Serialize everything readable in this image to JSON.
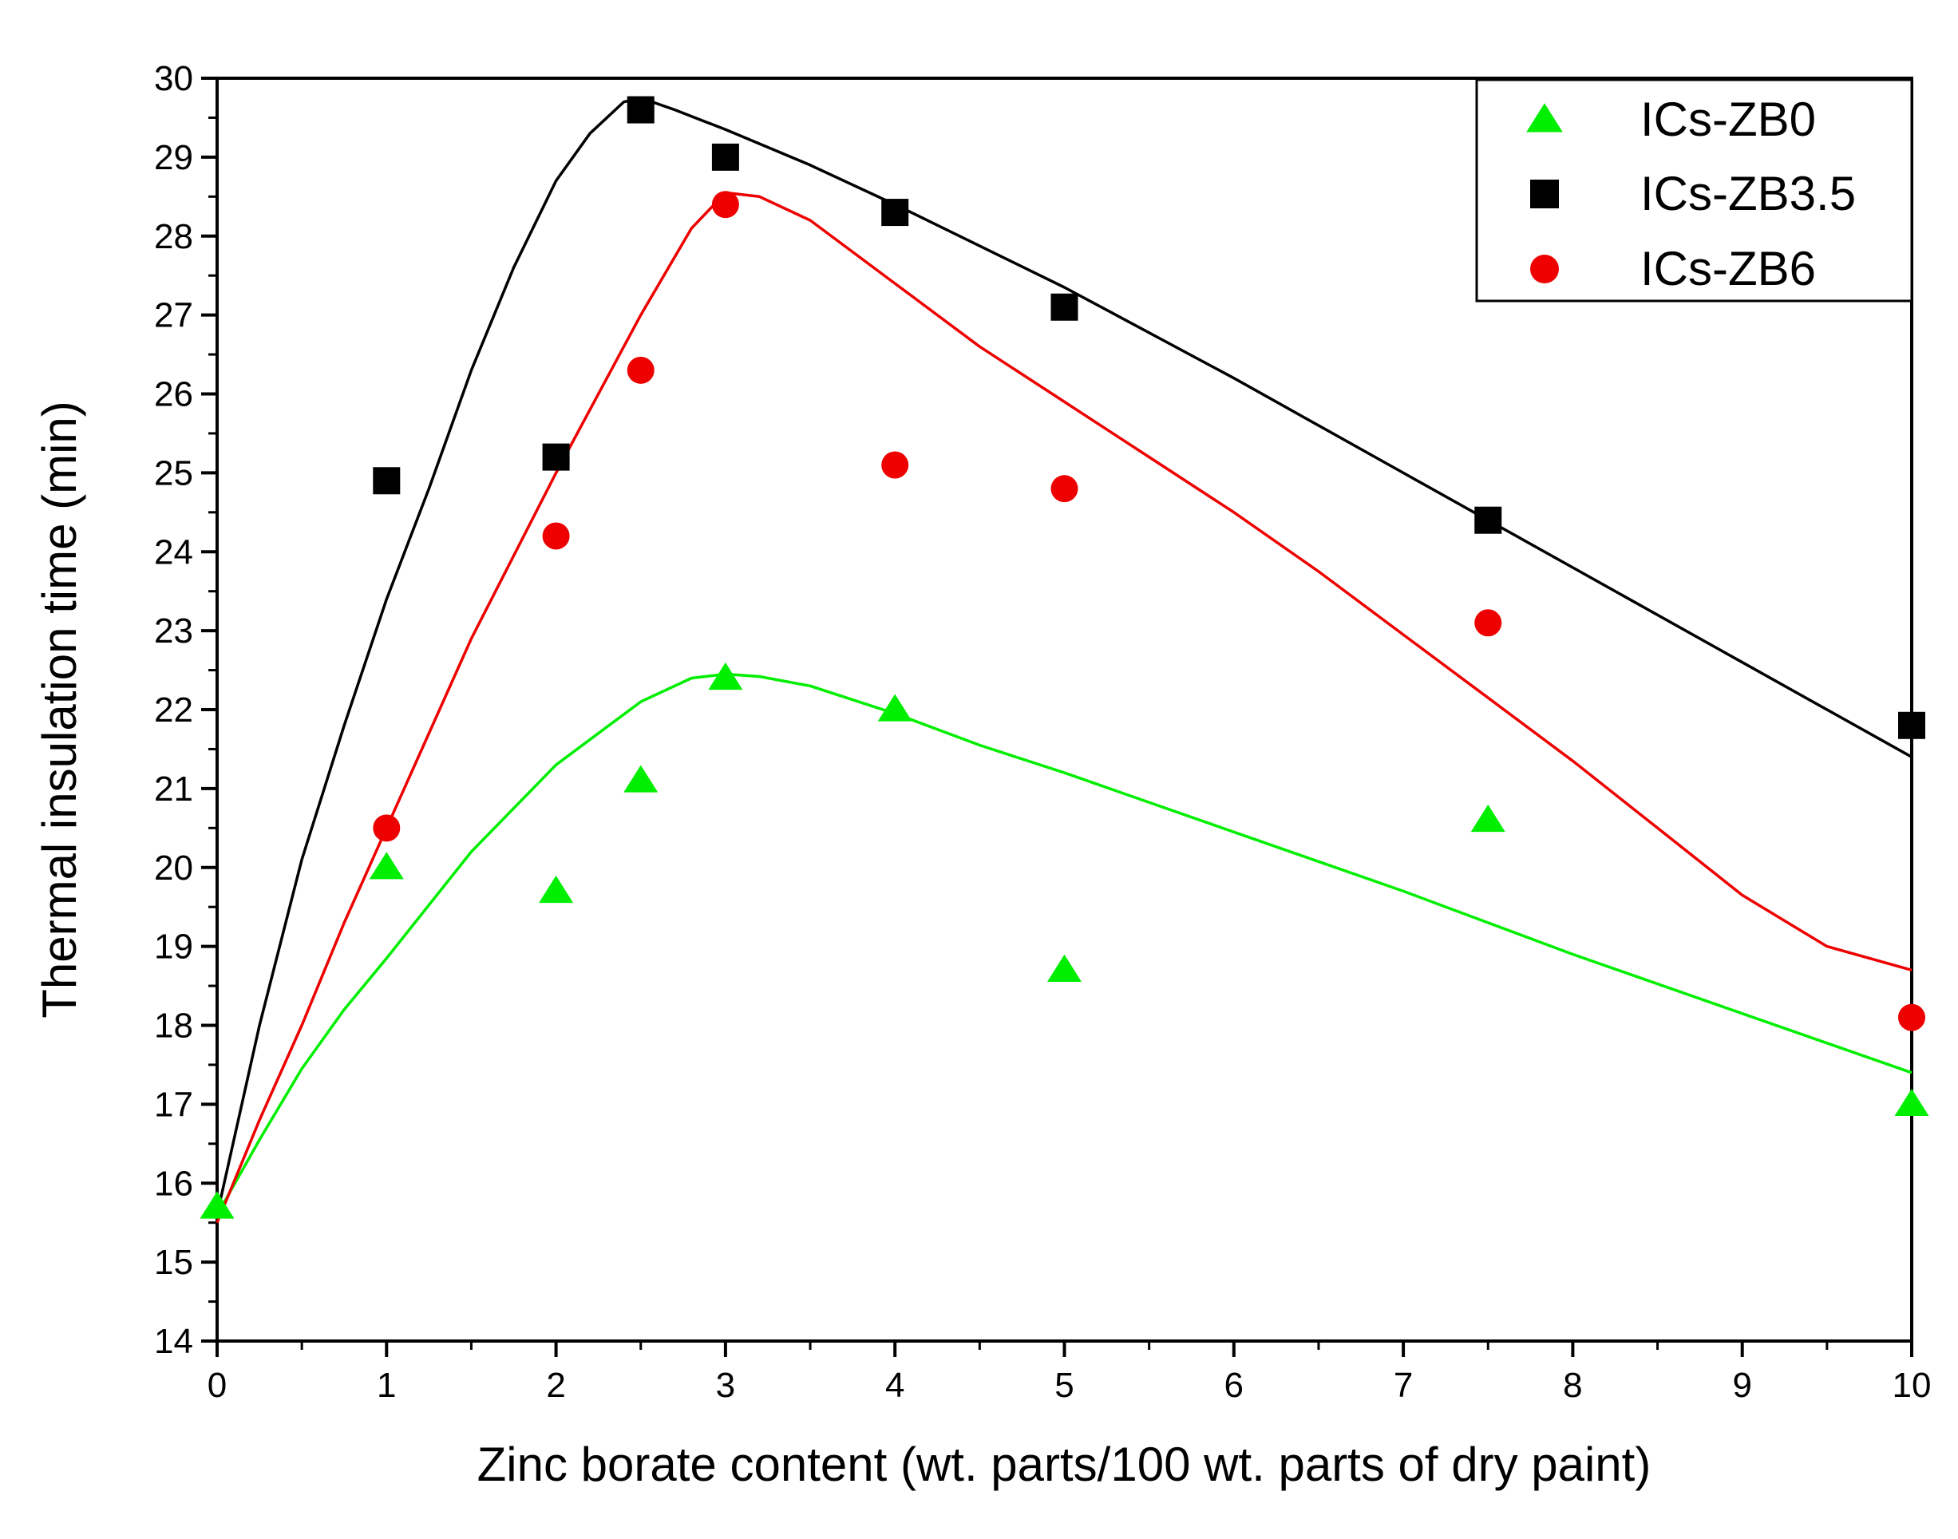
{
  "chart_data": {
    "type": "scatter",
    "title": "",
    "xlabel": "Zinc borate content (wt. parts/100 wt. parts of dry paint)",
    "ylabel": "Thermal insulation time (min)",
    "xlim": [
      0,
      10
    ],
    "ylim": [
      14,
      30
    ],
    "x_ticks": [
      "0",
      "1",
      "2",
      "3",
      "4",
      "5",
      "6",
      "7",
      "8",
      "9",
      "10"
    ],
    "y_ticks": [
      "14",
      "15",
      "16",
      "17",
      "18",
      "19",
      "20",
      "21",
      "22",
      "23",
      "24",
      "25",
      "26",
      "27",
      "28",
      "29",
      "30"
    ],
    "grid": false,
    "legend_position": "top-right",
    "series": [
      {
        "name": "ICs-ZB0",
        "marker": "triangle",
        "color": "#00ee00",
        "x": [
          0,
          1,
          2,
          2.5,
          3,
          4,
          5,
          7.5,
          10
        ],
        "y": [
          15.7,
          20.0,
          19.7,
          21.1,
          22.4,
          22.0,
          18.7,
          20.6,
          17.0
        ],
        "fit_x": [
          0,
          0.25,
          0.5,
          0.75,
          1,
          1.5,
          2,
          2.5,
          2.8,
          3,
          3.2,
          3.5,
          4,
          4.5,
          5,
          6,
          7,
          8,
          9,
          10
        ],
        "fit_y": [
          15.6,
          16.55,
          17.45,
          18.2,
          18.85,
          20.2,
          21.3,
          22.1,
          22.4,
          22.45,
          22.42,
          22.3,
          21.95,
          21.55,
          21.2,
          20.45,
          19.7,
          18.9,
          18.15,
          17.4
        ]
      },
      {
        "name": "ICs-ZB3.5",
        "marker": "square",
        "color": "#000000",
        "x": [
          1,
          2,
          2.5,
          3,
          4,
          5,
          7.5,
          10
        ],
        "y": [
          24.9,
          25.2,
          29.6,
          29.0,
          28.3,
          27.1,
          24.4,
          21.8
        ],
        "fit_x": [
          0,
          0.25,
          0.5,
          0.75,
          1,
          1.25,
          1.5,
          1.75,
          2,
          2.2,
          2.4,
          2.5,
          2.7,
          3,
          3.5,
          4,
          5,
          6,
          7,
          8,
          9,
          10
        ],
        "fit_y": [
          15.6,
          18.0,
          20.1,
          21.8,
          23.4,
          24.8,
          26.3,
          27.6,
          28.7,
          29.3,
          29.7,
          29.75,
          29.6,
          29.35,
          28.9,
          28.4,
          27.35,
          26.2,
          25.0,
          23.8,
          22.6,
          21.4
        ]
      },
      {
        "name": "ICs-ZB6",
        "marker": "circle",
        "color": "#ee0000",
        "x": [
          1,
          2,
          2.5,
          3,
          4,
          5,
          7.5,
          10
        ],
        "y": [
          20.5,
          24.2,
          26.3,
          28.4,
          25.1,
          24.8,
          23.1,
          18.1
        ],
        "fit_x": [
          0,
          0.25,
          0.5,
          0.75,
          1,
          1.5,
          2,
          2.5,
          2.8,
          3,
          3.2,
          3.5,
          4,
          4.5,
          5,
          5.5,
          6,
          6.5,
          7,
          7.5,
          8,
          8.5,
          9,
          9.5,
          10
        ],
        "fit_y": [
          15.5,
          16.8,
          18.0,
          19.3,
          20.5,
          22.9,
          25.0,
          27.0,
          28.1,
          28.55,
          28.5,
          28.2,
          27.4,
          26.6,
          25.9,
          25.2,
          24.5,
          23.75,
          22.95,
          22.15,
          21.35,
          20.5,
          19.65,
          19.0,
          18.7
        ]
      }
    ]
  }
}
